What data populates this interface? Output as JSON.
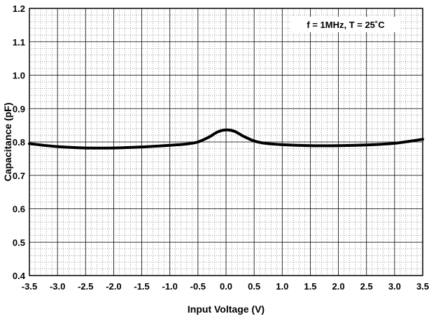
{
  "chart_data": {
    "type": "line",
    "title": "",
    "xlabel": "Input Voltage (V)",
    "ylabel": "Capacitance (pF)",
    "annotation": "f = 1MHz, T = 25˚C",
    "xlim": [
      -3.5,
      3.5
    ],
    "ylim": [
      0.4,
      1.2
    ],
    "x_ticks": [
      "-3.5",
      "-3.0",
      "-2.5",
      "-2.0",
      "-1.5",
      "-1.0",
      "-0.5",
      "0.0",
      "0.5",
      "1.0",
      "1.5",
      "2.0",
      "2.5",
      "3.0",
      "3.5"
    ],
    "y_ticks": [
      "0.4",
      "0.5",
      "0.6",
      "0.7",
      "0.8",
      "0.9",
      "1.0",
      "1.1",
      "1.2"
    ],
    "grid": true,
    "line_color": "#000000",
    "series": [
      {
        "x": [
          -3.5,
          -3.0,
          -2.5,
          -2.0,
          -1.5,
          -1.0,
          -0.7,
          -0.5,
          -0.3,
          -0.15,
          0.0,
          0.15,
          0.3,
          0.5,
          0.7,
          1.0,
          1.5,
          2.0,
          2.5,
          3.0,
          3.5
        ],
        "values": [
          0.795,
          0.786,
          0.782,
          0.782,
          0.785,
          0.79,
          0.794,
          0.8,
          0.815,
          0.83,
          0.836,
          0.832,
          0.818,
          0.803,
          0.796,
          0.792,
          0.789,
          0.789,
          0.791,
          0.796,
          0.808
        ]
      }
    ]
  }
}
